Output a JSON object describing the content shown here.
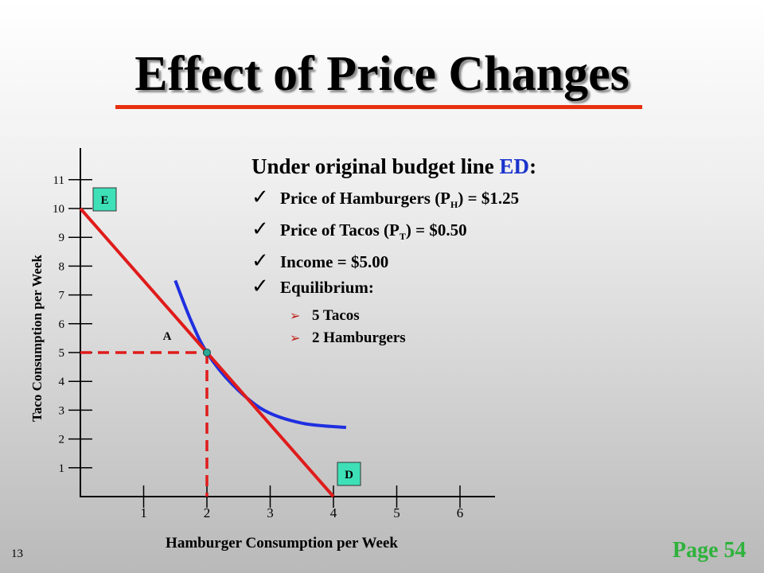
{
  "slide": {
    "title": "Effect of Price Changes",
    "slide_number": "13",
    "page_reference": "Page 54",
    "title_rule_color": "#e8300e"
  },
  "bullets": {
    "heading_prefix": "Under original budget line ",
    "heading_highlight": "ED",
    "heading_suffix": ":",
    "heading_highlight_color": "#1a33cc",
    "check_mark": "✓",
    "items": [
      {
        "label": "Price of Hamburgers (P",
        "sub": "H",
        "rest": ") = $1.25"
      },
      {
        "label": "Price of Tacos (P",
        "sub": "T",
        "rest": ") = $0.50"
      },
      {
        "label": "Income = $5.00",
        "sub": "",
        "rest": ""
      },
      {
        "label": "Equilibrium:",
        "sub": "",
        "rest": ""
      }
    ],
    "arrow_mark": "➢",
    "sub_items": [
      "5 Tacos",
      "2 Hamburgers"
    ]
  },
  "chart_data": {
    "type": "line",
    "xlabel": "Hamburger Consumption per Week",
    "ylabel": "Taco Consumption per Week",
    "x_ticks": [
      1,
      2,
      3,
      4,
      5,
      6
    ],
    "y_ticks": [
      1,
      2,
      3,
      4,
      5,
      6,
      7,
      8,
      9,
      10,
      11
    ],
    "xlim": [
      0,
      6.5
    ],
    "ylim": [
      0,
      11.8
    ],
    "grid": false,
    "budget_line": {
      "color": "#e01b1b",
      "points": [
        {
          "x": 0,
          "y": 10,
          "label": "E"
        },
        {
          "x": 4,
          "y": 0,
          "label": "D"
        }
      ]
    },
    "indifference_curve": {
      "color": "#1f2fe0",
      "points": [
        [
          1.5,
          7.5
        ],
        [
          1.75,
          6.1
        ],
        [
          2,
          5
        ],
        [
          2.4,
          3.9
        ],
        [
          2.9,
          3.0
        ],
        [
          3.5,
          2.55
        ],
        [
          4.2,
          2.4
        ]
      ]
    },
    "equilibrium": {
      "x": 2,
      "y": 5,
      "label": "A",
      "color": "#2aa89a"
    },
    "guide_color": "#e01b1b",
    "label_box_color": "#3ee0b8"
  }
}
